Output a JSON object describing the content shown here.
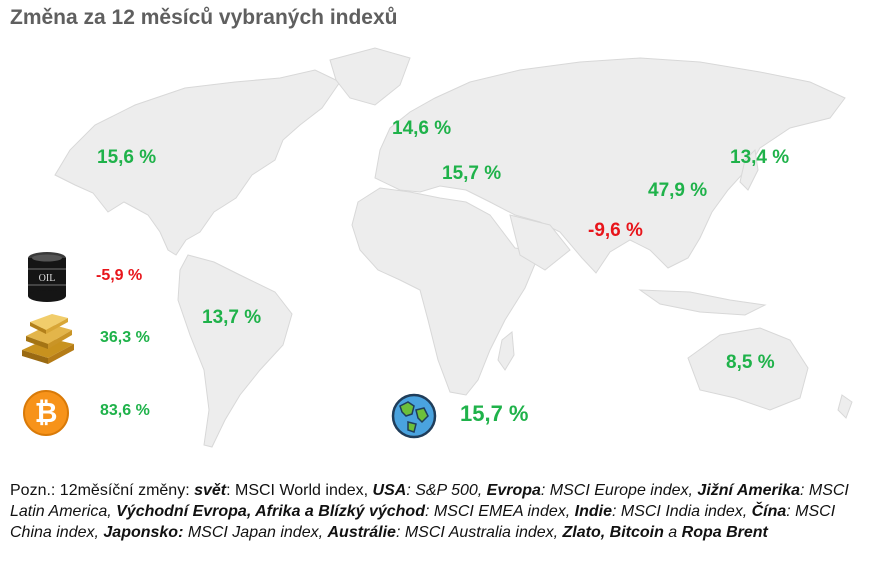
{
  "title": "Změna za 12 měsíců vybraných indexů",
  "regions": {
    "usa": "15,6 %",
    "europe": "14,6 %",
    "emea": "15,7 %",
    "japan": "13,4 %",
    "china": "47,9 %",
    "india": "-9,6 %",
    "latam": "13,7 %",
    "australia": "8,5 %",
    "world": "15,7 %"
  },
  "assets": {
    "oil_label": "OIL",
    "oil": "-5,9 %",
    "gold": "36,3 %",
    "bitcoin": "83,6 %"
  },
  "colors": {
    "positive": "#1fb24a",
    "negative": "#e8151b",
    "land": "#ededed",
    "title": "#5f5f5f"
  },
  "note": {
    "prefix": "Pozn.: 12měsíční změny: ",
    "world_k": "svět",
    "world_v": ": MSCI World index, ",
    "usa_k": "USA",
    "usa_v": ": S&P 500, ",
    "eu_k": "Evropa",
    "eu_v": ": MSCI Europe index, ",
    "latam_k": "Jižní Amerika",
    "latam_v": ": MSCI Latin America, ",
    "emea_k": "Východní Evropa, Afrika a Blízký východ",
    "emea_v": ": MSCI EMEA index, ",
    "india_k": "Indie",
    "india_v": ": MSCI India index, ",
    "china_k": "Čína",
    "china_v": ": MSCI China index, ",
    "japan_k": "Japonsko:",
    "japan_v": " MSCI Japan index, ",
    "aus_k": "Austrálie",
    "aus_v": ": MSCI Australia index, ",
    "assets_k": "Zlato, Bitcoin",
    "assets_a": " a ",
    "assets_k2": "Ropa Brent"
  }
}
